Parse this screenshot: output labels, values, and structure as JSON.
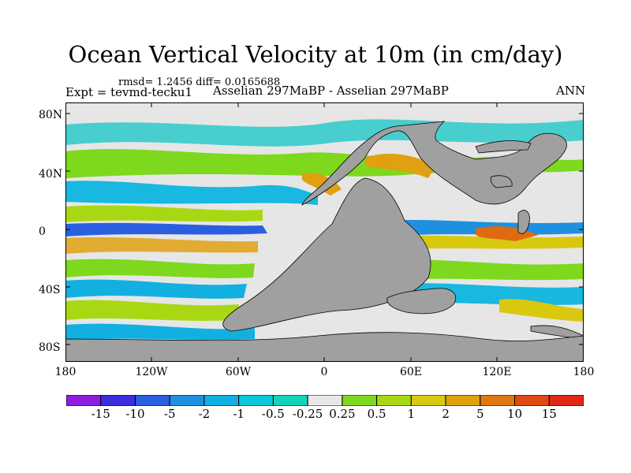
{
  "title": "Ocean Vertical Velocity at 10m (in cm/day)",
  "stats": "rmsd= 1.2456 diff= 0.0165688",
  "expt": "Expt = tevmd-tecku1",
  "comparison": "Asselian 297MaBP - Asselian 297MaBP",
  "season": "ANN",
  "y_ticks": [
    "80N",
    "40N",
    "0",
    "40S",
    "80S"
  ],
  "x_ticks": [
    "180",
    "120W",
    "60W",
    "0",
    "60E",
    "120E",
    "180"
  ],
  "colorbar": {
    "labels": [
      "-15",
      "-10",
      "-5",
      "-2",
      "-1",
      "-0.5",
      "-0.25",
      "0.25",
      "0.5",
      "1",
      "2",
      "5",
      "10",
      "15"
    ],
    "colors": [
      "#8b1ee0",
      "#3c2de0",
      "#2a5fe0",
      "#1f8fe0",
      "#12b0e0",
      "#0ac8d8",
      "#10d4b8",
      "#e8e8e8",
      "#7ed81e",
      "#a8d814",
      "#d8c810",
      "#e0a010",
      "#e07810",
      "#e04a10",
      "#e02814"
    ]
  },
  "colors": {
    "land": "#a0a0a0",
    "background": "#ffffff"
  }
}
